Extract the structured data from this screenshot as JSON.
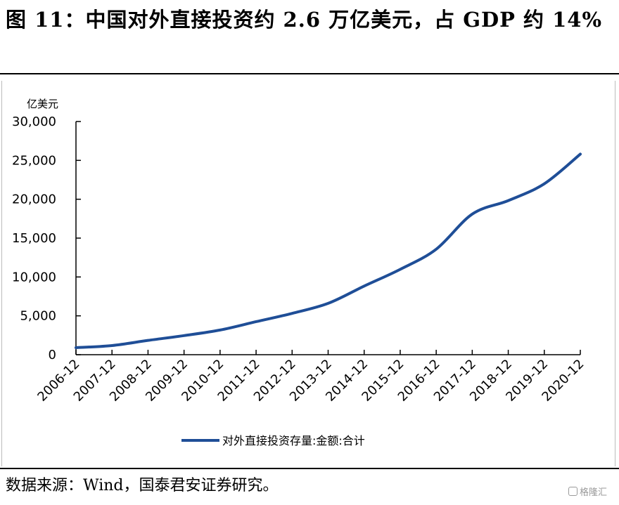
{
  "figure": {
    "title": "图 11：中国对外直接投资约 2.6 万亿美元，占 GDP 约 14%",
    "source": "数据来源：Wind，国泰君安证券研究。",
    "watermark": "格隆汇"
  },
  "colors": {
    "series_line": "#1f4e97",
    "axis": "#000000",
    "rules": "#000000"
  },
  "chart_data": {
    "type": "line",
    "title": "",
    "xlabel": "",
    "ylabel": "亿美元",
    "y_unit_label": "亿美元",
    "ylim": [
      0,
      30000
    ],
    "y_ticks": [
      0,
      5000,
      10000,
      15000,
      20000,
      25000,
      30000
    ],
    "y_tick_labels": [
      "0",
      "5,000",
      "10,000",
      "15,000",
      "20,000",
      "25,000",
      "30,000"
    ],
    "categories": [
      "2006-12",
      "2007-12",
      "2008-12",
      "2009-12",
      "2010-12",
      "2011-12",
      "2012-12",
      "2013-12",
      "2014-12",
      "2015-12",
      "2016-12",
      "2017-12",
      "2018-12",
      "2019-12",
      "2020-12"
    ],
    "grid": false,
    "legend_position": "bottom-center",
    "series": [
      {
        "name": "对外直接投资存量:金额:合计",
        "values": [
          906,
          1179,
          1840,
          2458,
          3172,
          4248,
          5319,
          6605,
          8826,
          10979,
          13574,
          18090,
          19823,
          21989,
          25807
        ]
      }
    ]
  }
}
